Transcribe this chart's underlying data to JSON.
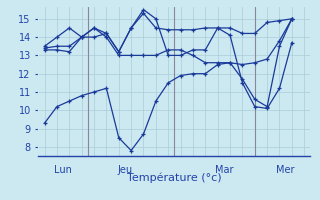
{
  "background_color": "#cce8f0",
  "grid_color": "#aaccda",
  "line_color": "#1a3a9a",
  "xlabel": "Température (°c)",
  "ylim": [
    7.5,
    15.7
  ],
  "xlim": [
    -0.5,
    21.5
  ],
  "xtick_positions": [
    1.5,
    6.5,
    14.5,
    19.5
  ],
  "xtick_labels": [
    "Lun",
    "Jeu",
    "Mar",
    "Mer"
  ],
  "ytick_positions": [
    8,
    9,
    10,
    11,
    12,
    13,
    14,
    15
  ],
  "vline_positions": [
    3.5,
    10.5,
    17.0
  ],
  "series": [
    {
      "x": [
        0,
        1,
        2,
        3,
        4,
        5,
        6,
        7,
        8,
        9,
        10,
        11,
        12,
        13,
        14,
        15,
        16,
        17,
        18,
        19,
        20
      ],
      "y": [
        9.3,
        10.2,
        10.5,
        10.8,
        11.0,
        11.2,
        8.5,
        7.8,
        8.7,
        10.5,
        11.5,
        11.9,
        12.0,
        12.0,
        12.5,
        12.6,
        11.7,
        10.6,
        10.2,
        13.5,
        15.0
      ]
    },
    {
      "x": [
        0,
        1,
        2,
        3,
        4,
        5,
        6,
        7,
        8,
        9,
        10,
        11,
        12,
        13,
        14,
        15,
        16,
        17,
        18,
        19,
        20
      ],
      "y": [
        13.3,
        13.3,
        13.2,
        14.0,
        14.5,
        14.0,
        13.0,
        13.0,
        13.0,
        13.0,
        13.3,
        13.3,
        13.0,
        12.6,
        12.6,
        12.6,
        12.5,
        12.6,
        12.8,
        13.8,
        15.0
      ]
    },
    {
      "x": [
        0,
        1,
        2,
        3,
        4,
        5,
        6,
        7,
        8,
        9,
        10,
        11,
        12,
        13,
        14,
        15,
        16,
        17,
        18,
        19,
        20
      ],
      "y": [
        13.4,
        13.5,
        13.5,
        14.0,
        14.5,
        14.2,
        13.2,
        14.5,
        15.3,
        14.5,
        14.4,
        14.4,
        14.4,
        14.5,
        14.5,
        14.5,
        14.2,
        14.2,
        14.8,
        14.9,
        15.0
      ]
    },
    {
      "x": [
        0,
        1,
        2,
        3,
        4,
        5,
        6,
        7,
        8,
        9,
        10,
        11,
        12,
        13,
        14,
        15,
        16,
        17,
        18,
        19,
        20
      ],
      "y": [
        13.5,
        14.0,
        14.5,
        14.0,
        14.0,
        14.2,
        13.2,
        14.5,
        15.5,
        15.0,
        13.0,
        13.0,
        13.3,
        13.3,
        14.5,
        14.1,
        11.5,
        10.2,
        10.1,
        11.2,
        13.7
      ]
    }
  ]
}
